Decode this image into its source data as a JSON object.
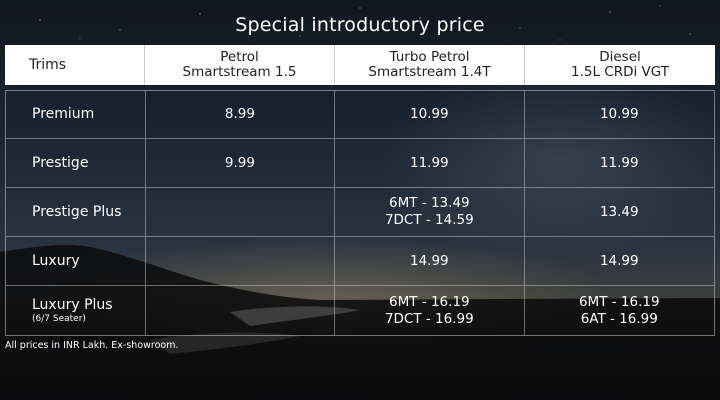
{
  "title": "Special introductory price",
  "header": {
    "trims": "Trims",
    "columns": [
      {
        "line1": "Petrol",
        "line2": "Smartstream 1.5"
      },
      {
        "line1": "Turbo Petrol",
        "line2": "Smartstream 1.4T"
      },
      {
        "line1": "Diesel",
        "line2": "1.5L CRDi VGT"
      }
    ]
  },
  "rows": [
    {
      "trim": "Premium",
      "petrol": "8.99",
      "turbo": "10.99",
      "diesel": "10.99"
    },
    {
      "trim": "Prestige",
      "petrol": "9.99",
      "turbo": "11.99",
      "diesel": "11.99"
    },
    {
      "trim": "Prestige Plus",
      "turbo_1": "6MT - 13.49",
      "turbo_2": "7DCT - 14.59",
      "diesel": "13.49"
    },
    {
      "trim": "Luxury",
      "turbo": "14.99",
      "diesel": "14.99"
    },
    {
      "trim": "Luxury Plus",
      "trim_sub": "(6/7 Seater)",
      "turbo_1": "6MT - 16.19",
      "turbo_2": "7DCT - 16.99",
      "diesel_1": "6MT - 16.19",
      "diesel_2": "6AT - 16.99"
    }
  ],
  "footnote": "All prices in INR Lakh. Ex-showroom."
}
